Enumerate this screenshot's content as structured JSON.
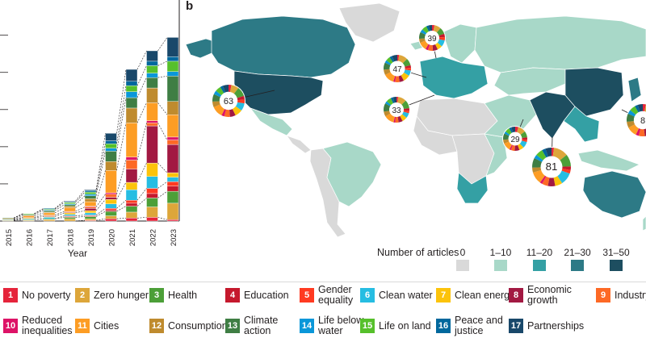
{
  "panel_label": "b",
  "chart_data": [
    {
      "type": "bar",
      "subtype": "stacked",
      "xlabel": "Year",
      "ylabel": "",
      "categories": [
        "2015",
        "2016",
        "2017",
        "2018",
        "2019",
        "2020",
        "2021",
        "2022",
        "2023"
      ],
      "x_tick_labels": [
        "2015",
        "2016",
        "2017",
        "2018",
        "2019",
        "2020",
        "2021",
        "2022",
        "2023"
      ],
      "ylim": [
        0,
        280
      ],
      "grid": true,
      "series": [
        {
          "name": "No poverty",
          "values": [
            0,
            0,
            0,
            0,
            1,
            3,
            4,
            5,
            2
          ]
        },
        {
          "name": "Zero hunger",
          "values": [
            1,
            1,
            2,
            3,
            2,
            4,
            8,
            14,
            22
          ]
        },
        {
          "name": "Health",
          "values": [
            0,
            1,
            1,
            2,
            3,
            6,
            8,
            12,
            16
          ]
        },
        {
          "name": "Education",
          "values": [
            0,
            0,
            0,
            1,
            1,
            2,
            4,
            6,
            7
          ]
        },
        {
          "name": "Gender equality",
          "values": [
            0,
            0,
            0,
            1,
            1,
            2,
            4,
            7,
            6
          ]
        },
        {
          "name": "Clean water",
          "values": [
            1,
            1,
            2,
            2,
            3,
            6,
            14,
            16,
            6
          ]
        },
        {
          "name": "Clean energy",
          "values": [
            0,
            1,
            1,
            2,
            3,
            6,
            10,
            18,
            6
          ]
        },
        {
          "name": "Economic growth",
          "values": [
            0,
            0,
            1,
            1,
            3,
            3,
            18,
            50,
            38
          ]
        },
        {
          "name": "Industry",
          "values": [
            0,
            1,
            1,
            1,
            2,
            4,
            12,
            4,
            6
          ]
        },
        {
          "name": "Reduced inequalities",
          "values": [
            0,
            0,
            0,
            0,
            1,
            2,
            4,
            3,
            4
          ]
        },
        {
          "name": "Cities",
          "values": [
            1,
            2,
            3,
            5,
            6,
            30,
            46,
            24,
            30
          ]
        },
        {
          "name": "Consumption",
          "values": [
            0,
            1,
            1,
            2,
            4,
            12,
            20,
            20,
            18
          ]
        },
        {
          "name": "Climate action",
          "values": [
            1,
            1,
            2,
            2,
            4,
            14,
            14,
            14,
            34
          ]
        },
        {
          "name": "Life below water",
          "values": [
            0,
            0,
            1,
            1,
            2,
            4,
            8,
            6,
            6
          ]
        },
        {
          "name": "Life on land",
          "values": [
            0,
            1,
            1,
            2,
            3,
            6,
            8,
            10,
            14
          ]
        },
        {
          "name": "Peace and justice",
          "values": [
            0,
            0,
            1,
            1,
            2,
            4,
            6,
            6,
            6
          ]
        },
        {
          "name": "Partnerships",
          "values": [
            0,
            0,
            0,
            1,
            1,
            10,
            16,
            14,
            26
          ]
        }
      ],
      "totals": [
        4,
        10,
        18,
        27,
        42,
        118,
        204,
        229,
        247
      ],
      "colors": [
        "#e5243b",
        "#dda63a",
        "#4c9f38",
        "#c5192d",
        "#ff3a21",
        "#26bde2",
        "#fcc30b",
        "#a21942",
        "#fd6925",
        "#dd1367",
        "#fd9d24",
        "#bf8b2e",
        "#3f7e44",
        "#0a97d9",
        "#56c02b",
        "#00689d",
        "#19486a"
      ]
    },
    {
      "type": "map",
      "subtype": "choropleth",
      "legend_title": "Number of articles",
      "legend_classes": [
        {
          "label": "0",
          "color": "#d9d9d9"
        },
        {
          "label": "1–10",
          "color": "#a8d8c8"
        },
        {
          "label": "11–20",
          "color": "#34a0a4"
        },
        {
          "label": "21–30",
          "color": "#2d7a86"
        },
        {
          "label": "31–50",
          "color": "#1d4e60"
        }
      ],
      "country_class": {
        "usa": "31–50",
        "canada": "21–30",
        "alaska": "21–30",
        "mexico": "1–10",
        "central-america": "0",
        "brazil": "1–10",
        "south-america-west": "0",
        "greenland": "0",
        "iceland": "1–10",
        "europe": "11–20",
        "scandinavia": "1–10",
        "russia": "1–10",
        "north-africa": "0",
        "west-africa": "0",
        "central-africa": "0",
        "east-africa": "1–10",
        "south-africa": "11–20",
        "middle-east": "1–10",
        "central-asia": "1–10",
        "india": "31–50",
        "china": "31–50",
        "southeast-asia": "11–20",
        "japan": "21–30",
        "indonesia": "1–10",
        "australia": "21–30",
        "new-zealand": "1–10"
      },
      "donut_totals": [
        {
          "value": "63",
          "region": "usa"
        },
        {
          "value": "47",
          "region": "europe"
        },
        {
          "value": "39",
          "region": "europe-north"
        },
        {
          "value": "33",
          "region": "europe-south"
        },
        {
          "value": "29",
          "region": "middle-east"
        },
        {
          "value": "81",
          "region": "india"
        },
        {
          "value": "8",
          "region": "china"
        }
      ],
      "donut_shares": {
        "63": [
          3,
          8,
          10,
          4,
          4,
          8,
          8,
          6,
          6,
          3,
          12,
          6,
          8,
          4,
          6,
          3,
          6
        ],
        "47": [
          2,
          10,
          8,
          3,
          3,
          6,
          8,
          5,
          5,
          2,
          12,
          6,
          8,
          3,
          5,
          3,
          6
        ],
        "39": [
          3,
          8,
          8,
          4,
          4,
          8,
          6,
          6,
          6,
          3,
          10,
          5,
          8,
          4,
          6,
          3,
          4
        ],
        "33": [
          2,
          10,
          10,
          3,
          3,
          6,
          6,
          5,
          4,
          2,
          12,
          6,
          10,
          3,
          6,
          3,
          4
        ],
        "29": [
          4,
          10,
          8,
          3,
          3,
          8,
          6,
          6,
          5,
          2,
          10,
          5,
          8,
          3,
          6,
          3,
          5
        ],
        "81": [
          2,
          12,
          10,
          3,
          3,
          10,
          6,
          6,
          5,
          2,
          10,
          4,
          8,
          3,
          6,
          3,
          5
        ],
        "8": [
          3,
          8,
          8,
          4,
          4,
          8,
          6,
          6,
          6,
          3,
          10,
          6,
          8,
          4,
          6,
          3,
          5
        ]
      }
    }
  ],
  "sdg_legend": [
    {
      "num": "1",
      "label": "No poverty",
      "color": "#e5243b"
    },
    {
      "num": "2",
      "label": "Zero hunger",
      "color": "#dda63a"
    },
    {
      "num": "3",
      "label": "Health",
      "color": "#4c9f38"
    },
    {
      "num": "4",
      "label": "Education",
      "color": "#c5192d"
    },
    {
      "num": "5",
      "label": "Gender equality",
      "color": "#ff3a21"
    },
    {
      "num": "6",
      "label": "Clean water",
      "color": "#26bde2"
    },
    {
      "num": "7",
      "label": "Clean energy",
      "color": "#fcc30b"
    },
    {
      "num": "8",
      "label": "Economic growth",
      "color": "#a21942"
    },
    {
      "num": "9",
      "label": "Industry",
      "color": "#fd6925"
    },
    {
      "num": "10",
      "label": "Reduced inequalities",
      "color": "#dd1367"
    },
    {
      "num": "11",
      "label": "Cities",
      "color": "#fd9d24"
    },
    {
      "num": "12",
      "label": "Consumption",
      "color": "#bf8b2e"
    },
    {
      "num": "13",
      "label": "Climate action",
      "color": "#3f7e44"
    },
    {
      "num": "14",
      "label": "Life below water",
      "color": "#0a97d9"
    },
    {
      "num": "15",
      "label": "Life on land",
      "color": "#56c02b"
    },
    {
      "num": "16",
      "label": "Peace and justice",
      "color": "#00689d"
    },
    {
      "num": "17",
      "label": "Partnerships",
      "color": "#19486a"
    }
  ]
}
